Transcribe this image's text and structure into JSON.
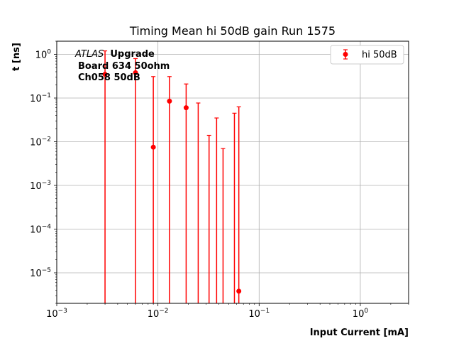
{
  "chart_data": {
    "type": "scatter",
    "title": "Timing Mean hi 50dB gain Run 1575",
    "xlabel": "Input Current [mA]",
    "ylabel": "t [ns]",
    "xscale": "log",
    "yscale": "log",
    "xlim": [
      0.001,
      3
    ],
    "ylim": [
      2e-06,
      2
    ],
    "grid": true,
    "legend_position": "top-right",
    "x_ticks": [
      {
        "value": 0.001,
        "base": "10",
        "exp": "−3"
      },
      {
        "value": 0.01,
        "base": "10",
        "exp": "−2"
      },
      {
        "value": 0.1,
        "base": "10",
        "exp": "−1"
      },
      {
        "value": 1,
        "base": "10",
        "exp": "0"
      }
    ],
    "y_ticks": [
      {
        "value": 1e-05,
        "base": "10",
        "exp": "−5"
      },
      {
        "value": 0.0001,
        "base": "10",
        "exp": "−4"
      },
      {
        "value": 0.001,
        "base": "10",
        "exp": "−3"
      },
      {
        "value": 0.01,
        "base": "10",
        "exp": "−2"
      },
      {
        "value": 0.1,
        "base": "10",
        "exp": "−1"
      },
      {
        "value": 1,
        "base": "10",
        "exp": "0"
      }
    ],
    "annotation": {
      "atlas": "ATLAS",
      "upgrade": "Upgrade",
      "line2": "Board 634 50ohm",
      "line3": "Ch058 50dB"
    },
    "series": [
      {
        "name": "hi 50dB",
        "color": "#ff0000",
        "points": [
          {
            "x": 0.003,
            "y": 0.35,
            "err_up": 1.2,
            "marker": true
          },
          {
            "x": 0.006,
            "y": 0.38,
            "err_up": 0.8,
            "marker": true
          },
          {
            "x": 0.009,
            "y": 0.0075,
            "err_up": 0.31,
            "marker": true
          },
          {
            "x": 0.013,
            "y": 0.085,
            "err_up": 0.31,
            "marker": true
          },
          {
            "x": 0.019,
            "y": 0.06,
            "err_up": 0.21,
            "marker": true
          },
          {
            "x": 0.025,
            "y": null,
            "err_up": 0.077,
            "marker": false
          },
          {
            "x": 0.032,
            "y": null,
            "err_up": 0.014,
            "marker": false
          },
          {
            "x": 0.038,
            "y": null,
            "err_up": 0.035,
            "marker": false
          },
          {
            "x": 0.044,
            "y": null,
            "err_up": 0.007,
            "marker": false
          },
          {
            "x": 0.057,
            "y": null,
            "err_up": 0.045,
            "marker": false
          },
          {
            "x": 0.063,
            "y": 3.8e-06,
            "err_up": 0.063,
            "marker": true
          }
        ]
      }
    ]
  }
}
